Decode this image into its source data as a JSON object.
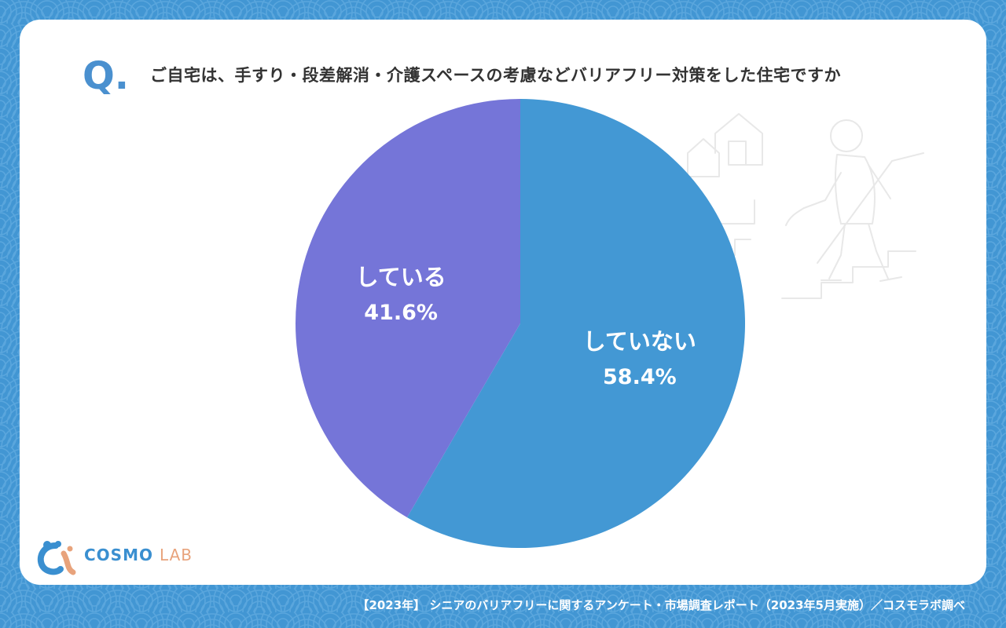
{
  "question": {
    "mark": "Q.",
    "text": "ご自宅は、手すり・段差解消・介護スペースの考慮などバリアフリー対策をした住宅ですか"
  },
  "brand": {
    "name": "COSMO",
    "name_suffix": "LAB"
  },
  "source": "【2023年】 シニアのバリアフリーに関するアンケート・市場調査レポート（2023年5月実施）／コスモラボ調べ",
  "colors": {
    "background": "#4296d3",
    "slice_not": "#4398d4",
    "slice_yes": "#7575d8",
    "question_mark": "#4a90cf",
    "logo_orange": "#e8a37c"
  },
  "chart_data": {
    "type": "pie",
    "title": "ご自宅は、手すり・段差解消・介護スペースの考慮などバリアフリー対策をした住宅ですか",
    "start": "12 o'clock, clockwise",
    "slices": [
      {
        "label": "していない",
        "value": 58.4,
        "display": "58.4%",
        "color": "#4398d4"
      },
      {
        "label": "している",
        "value": 41.6,
        "display": "41.6%",
        "color": "#7575d8"
      }
    ]
  }
}
